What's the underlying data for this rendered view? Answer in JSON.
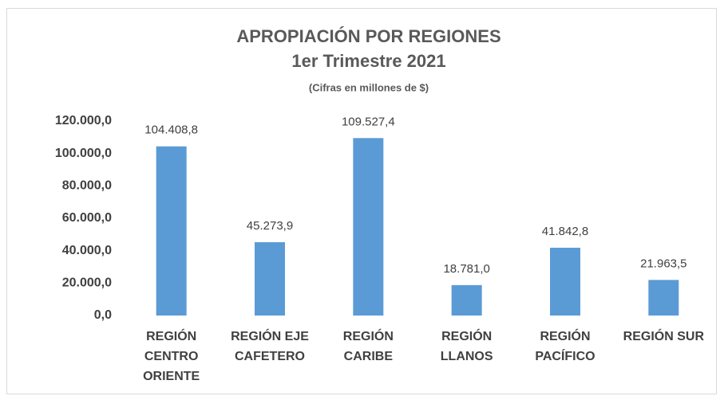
{
  "chart_data": {
    "type": "bar",
    "title": "APROPIACIÓN POR REGIONES",
    "subtitle": "1er Trimestre 2021",
    "note": "(Cifras en millones de $)",
    "categories": [
      "REGIÓN CENTRO ORIENTE",
      "REGIÓN EJE CAFETERO",
      "REGIÓN CARIBE",
      "REGIÓN LLANOS",
      "REGIÓN PACÍFICO",
      "REGIÓN SUR"
    ],
    "values": [
      104408.8,
      45273.9,
      109527.4,
      18781.0,
      41842.8,
      21963.5
    ],
    "value_labels": [
      "104.408,8",
      "45.273,9",
      "109.527,4",
      "18.781,0",
      "41.842,8",
      "21.963,5"
    ],
    "color": "#5b9bd5",
    "ylim": [
      0,
      120000
    ],
    "yticks": [
      {
        "value": 0,
        "label": "0,0"
      },
      {
        "value": 20000,
        "label": "20.000,0"
      },
      {
        "value": 40000,
        "label": "40.000,0"
      },
      {
        "value": 60000,
        "label": "60.000,0"
      },
      {
        "value": 80000,
        "label": "80.000,0"
      },
      {
        "value": 100000,
        "label": "100.000,0"
      },
      {
        "value": 120000,
        "label": "120.000,0"
      }
    ],
    "grid": false
  }
}
